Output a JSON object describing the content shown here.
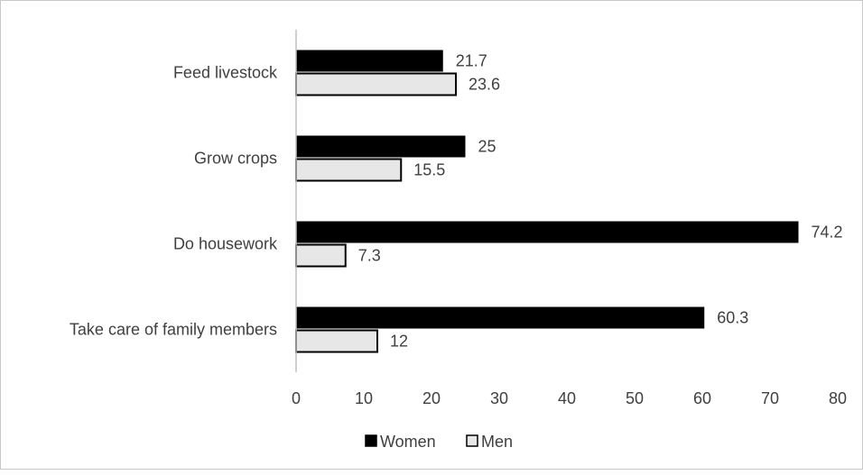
{
  "chart_data": {
    "type": "bar",
    "orientation": "horizontal",
    "categories": [
      "Feed livestock",
      "Grow crops",
      "Do housework",
      "Take care of family members"
    ],
    "series": [
      {
        "name": "Women",
        "values": [
          21.7,
          25,
          74.2,
          60.3
        ],
        "color": "#000000"
      },
      {
        "name": "Men",
        "values": [
          23.6,
          15.5,
          7.3,
          12
        ],
        "color": "#e7e7e7",
        "stroke": "#000000"
      }
    ],
    "x_ticks": [
      0,
      10,
      20,
      30,
      40,
      50,
      60,
      70,
      80
    ],
    "xlim": [
      0,
      80
    ],
    "grid": false,
    "legend_position": "bottom",
    "title": "",
    "xlabel": "",
    "ylabel": ""
  }
}
